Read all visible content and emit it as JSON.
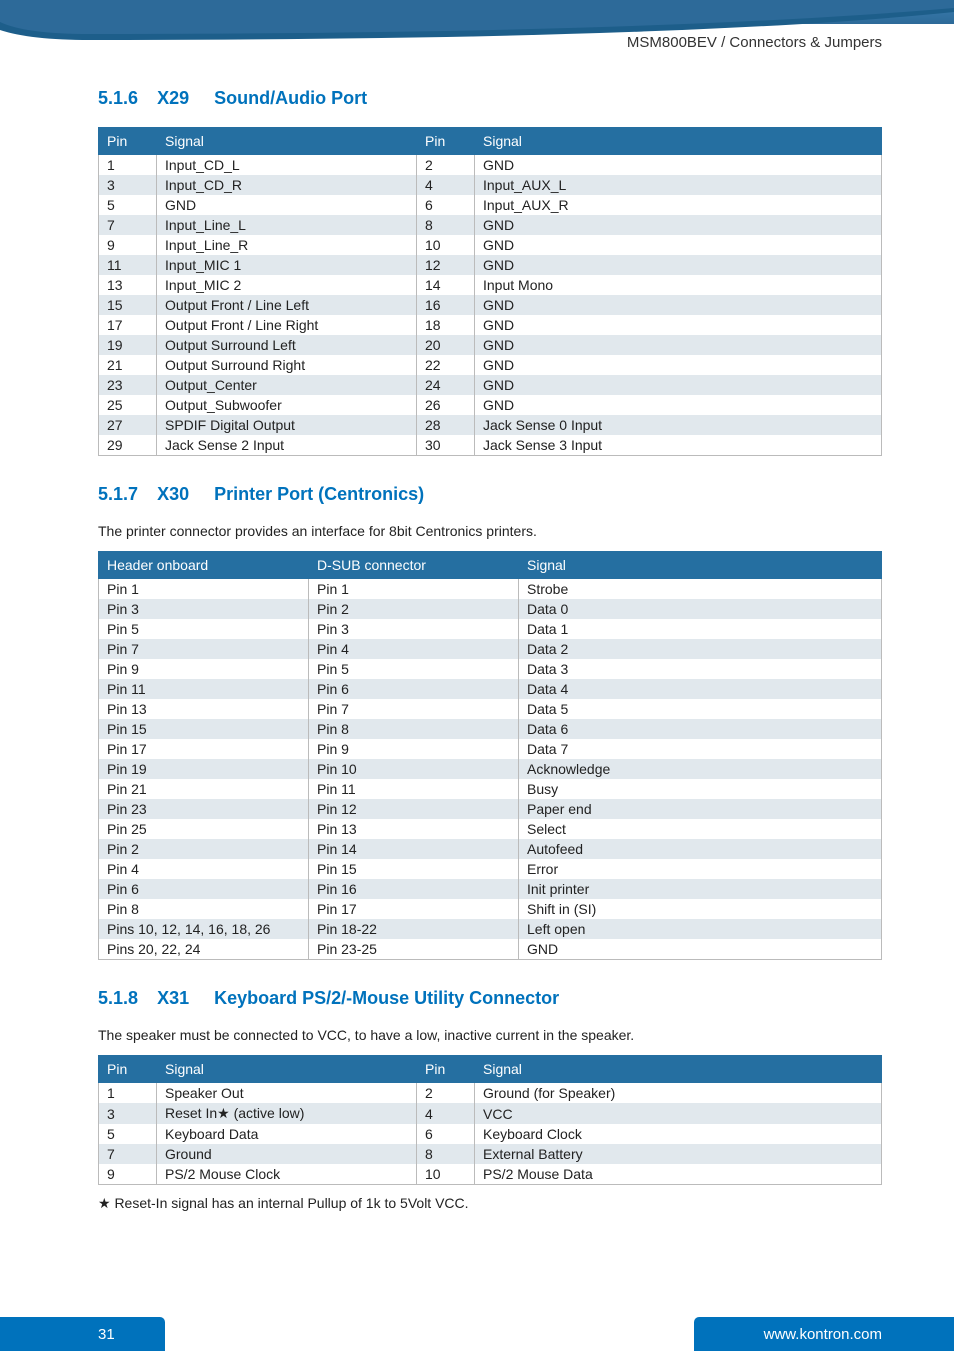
{
  "header": {
    "breadcrumb": "MSM800BEV / Connectors & Jumpers"
  },
  "colors": {
    "accent": "#0072bc",
    "table_header_bg": "#256fa1",
    "table_header_fg": "#ffffff",
    "row_alt_bg": "#e1e8ed",
    "text": "#222222"
  },
  "section1": {
    "num": "5.1.6",
    "code": "X29",
    "title": "Sound/Audio Port",
    "cols": [
      "Pin",
      "Signal",
      "Pin",
      "Signal"
    ],
    "rows": [
      [
        "1",
        "Input_CD_L",
        "2",
        "GND"
      ],
      [
        "3",
        "Input_CD_R",
        "4",
        "Input_AUX_L"
      ],
      [
        "5",
        "GND",
        "6",
        "Input_AUX_R"
      ],
      [
        "7",
        "Input_Line_L",
        "8",
        "GND"
      ],
      [
        "9",
        "Input_Line_R",
        "10",
        "GND"
      ],
      [
        "11",
        "Input_MIC 1",
        "12",
        "GND"
      ],
      [
        "13",
        "Input_MIC 2",
        "14",
        "Input  Mono"
      ],
      [
        "15",
        "Output Front / Line Left",
        "16",
        "GND"
      ],
      [
        "17",
        "Output Front / Line Right",
        "18",
        "GND"
      ],
      [
        "19",
        "Output Surround Left",
        "20",
        "GND"
      ],
      [
        "21",
        "Output Surround Right",
        "22",
        "GND"
      ],
      [
        "23",
        "Output_Center",
        "24",
        "GND"
      ],
      [
        "25",
        "Output_Subwoofer",
        "26",
        "GND"
      ],
      [
        "27",
        "SPDIF Digital Output",
        "28",
        "Jack Sense 0 Input"
      ],
      [
        "29",
        "Jack Sense 2 Input",
        "30",
        "Jack Sense 3 Input"
      ]
    ]
  },
  "section2": {
    "num": "5.1.7",
    "code": "X30",
    "title": "Printer Port (Centronics)",
    "intro": "The printer connector provides an interface for 8bit Centronics printers.",
    "cols": [
      "Header onboard",
      "D-SUB connector",
      "Signal"
    ],
    "rows": [
      [
        "Pin 1",
        "Pin 1",
        "Strobe"
      ],
      [
        "Pin 3",
        "Pin 2",
        "Data 0"
      ],
      [
        "Pin 5",
        "Pin 3",
        "Data 1"
      ],
      [
        "Pin 7",
        "Pin 4",
        "Data 2"
      ],
      [
        "Pin 9",
        "Pin 5",
        "Data 3"
      ],
      [
        "Pin 11",
        "Pin 6",
        "Data 4"
      ],
      [
        "Pin 13",
        "Pin 7",
        "Data 5"
      ],
      [
        "Pin 15",
        "Pin 8",
        "Data 6"
      ],
      [
        "Pin 17",
        "Pin 9",
        "Data 7"
      ],
      [
        "Pin 19",
        "Pin 10",
        "Acknowledge"
      ],
      [
        "Pin 21",
        "Pin 11",
        "Busy"
      ],
      [
        "Pin 23",
        "Pin 12",
        "Paper end"
      ],
      [
        "Pin 25",
        "Pin 13",
        "Select"
      ],
      [
        "Pin 2",
        "Pin 14",
        "Autofeed"
      ],
      [
        "Pin 4",
        "Pin 15",
        "Error"
      ],
      [
        "Pin 6",
        "Pin 16",
        "Init printer"
      ],
      [
        "Pin 8",
        "Pin 17",
        "Shift in (SI)"
      ],
      [
        "Pins 10, 12, 14, 16, 18, 26",
        "Pin 18-22",
        "Left open"
      ],
      [
        "Pins 20, 22, 24",
        "Pin 23-25",
        "GND"
      ]
    ]
  },
  "section3": {
    "num": "5.1.8",
    "code": "X31",
    "title": "Keyboard PS/2/-Mouse Utility Connector",
    "intro": "The speaker must be connected to VCC, to have a low, inactive current in the speaker.",
    "cols": [
      "Pin",
      "Signal",
      "Pin",
      "Signal"
    ],
    "rows": [
      [
        "1",
        "Speaker Out",
        "2",
        "Ground (for Speaker)"
      ],
      [
        "3",
        "Reset In★ (active low)",
        "4",
        "VCC"
      ],
      [
        "5",
        "Keyboard Data",
        "6",
        "Keyboard Clock"
      ],
      [
        "7",
        "Ground",
        "8",
        "External Battery"
      ],
      [
        "9",
        "PS/2 Mouse Clock",
        "10",
        "PS/2 Mouse Data"
      ]
    ],
    "footnote": "★ Reset-In signal has an internal Pullup of 1k to 5Volt VCC."
  },
  "footer": {
    "page": "31",
    "url": "www.kontron.com"
  }
}
